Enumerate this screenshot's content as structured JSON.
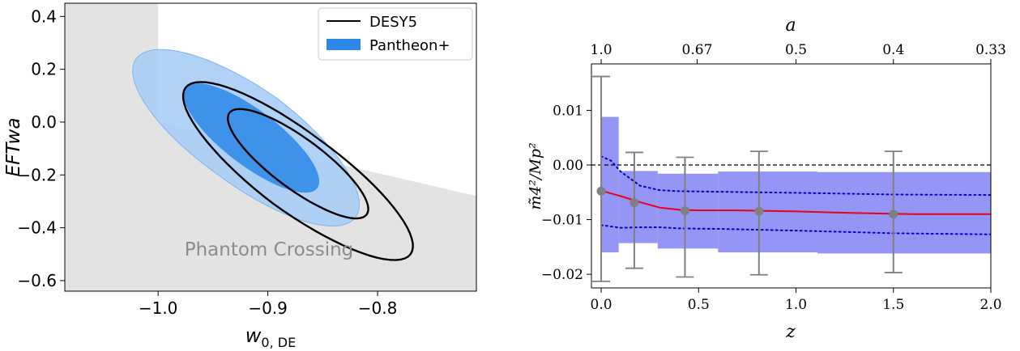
{
  "chart_data": [
    {
      "type": "contour",
      "xlabel": "w_0,DE",
      "xlabel_main": "w",
      "xlabel_sub": "0, DE",
      "ylabel": "EFTwa",
      "xlim": [
        -1.085,
        -0.71
      ],
      "ylim": [
        -0.64,
        0.45
      ],
      "xticks": [
        {
          "v": -1.0,
          "label": "−1.0"
        },
        {
          "v": -0.9,
          "label": "−0.9"
        },
        {
          "v": -0.8,
          "label": "−0.8"
        }
      ],
      "yticks": [
        {
          "v": 0.4,
          "label": "0.4"
        },
        {
          "v": 0.2,
          "label": "0.2"
        },
        {
          "v": 0.0,
          "label": "0.0"
        },
        {
          "v": -0.2,
          "label": "−0.2"
        },
        {
          "v": -0.4,
          "label": "−0.4"
        },
        {
          "v": -0.6,
          "label": "−0.6"
        }
      ],
      "region_label": "Phantom Crossing",
      "legend": {
        "position": "top-right",
        "entries": [
          {
            "name": "DESY5",
            "style": "line",
            "color": "#000000"
          },
          {
            "name": "Pantheon+",
            "style": "patch",
            "color": "#2b87e8"
          }
        ]
      },
      "colors": {
        "region": "#e3e3e3",
        "pantheon_outer": "#a9cdf6",
        "pantheon_inner": "#2b87e8",
        "desy5": "#000000"
      },
      "series": [
        {
          "name": "Pantheon+",
          "kind": "filled",
          "level": "95%",
          "center": [
            -0.92,
            -0.05
          ],
          "tip_a": [
            -1.02,
            0.24
          ],
          "tip_b": [
            -0.82,
            -0.36
          ],
          "half_width": 0.044
        },
        {
          "name": "Pantheon+",
          "kind": "filled",
          "level": "68%",
          "center": [
            -0.915,
            -0.06
          ],
          "tip_a": [
            -0.975,
            0.13
          ],
          "tip_b": [
            -0.855,
            -0.25
          ],
          "half_width": 0.025
        },
        {
          "name": "DESY5",
          "kind": "line",
          "level": "95%",
          "center": [
            -0.87,
            -0.2
          ],
          "tip_a": [
            -0.975,
            0.13
          ],
          "tip_b": [
            -0.77,
            -0.5
          ],
          "half_width": 0.036
        },
        {
          "name": "DESY5",
          "kind": "line",
          "level": "68%",
          "center": [
            -0.875,
            -0.15
          ],
          "tip_a": [
            -0.935,
            0.035
          ],
          "tip_b": [
            -0.81,
            -0.35
          ],
          "half_width": 0.023
        }
      ]
    },
    {
      "type": "line",
      "xlabel": "z",
      "ylabel": "m̃4²/Mp²",
      "top_axis_label": "a",
      "xlim": [
        -0.05,
        2.0
      ],
      "ylim": [
        -0.0225,
        0.0185
      ],
      "xticks": [
        {
          "v": 0.0,
          "label": "0.0"
        },
        {
          "v": 0.5,
          "label": "0.5"
        },
        {
          "v": 1.0,
          "label": "1.0"
        },
        {
          "v": 1.5,
          "label": "1.5"
        },
        {
          "v": 2.0,
          "label": "2.0"
        }
      ],
      "yticks": [
        {
          "v": 0.01,
          "label": "0.01"
        },
        {
          "v": 0.0,
          "label": "0.00"
        },
        {
          "v": -0.01,
          "label": "−0.01"
        },
        {
          "v": -0.02,
          "label": "−0.02"
        }
      ],
      "top_ticks": [
        {
          "z": 0.0,
          "label": "1.0"
        },
        {
          "z": 0.4925,
          "label": "0.67"
        },
        {
          "z": 1.0,
          "label": "0.5"
        },
        {
          "z": 1.5,
          "label": "0.4"
        },
        {
          "z": 2.0,
          "label": "0.33"
        }
      ],
      "reference_line": {
        "y": 0.0,
        "style": "dashed"
      },
      "colors": {
        "band": "#8a8af4",
        "mean": "#e8001e",
        "bounds": "#0000cc",
        "points": "#808080"
      },
      "bins": [
        {
          "z0": 0.0,
          "z1": 0.09,
          "lo": -0.016,
          "hi": 0.0088
        },
        {
          "z0": 0.09,
          "z1": 0.29,
          "lo": -0.0143,
          "hi": -0.0011
        },
        {
          "z0": 0.29,
          "z1": 0.6,
          "lo": -0.0153,
          "hi": -0.0016
        },
        {
          "z0": 0.6,
          "z1": 1.11,
          "lo": -0.016,
          "hi": -0.0012
        },
        {
          "z0": 1.11,
          "z1": 2.0,
          "lo": -0.0162,
          "hi": -0.0013
        }
      ],
      "series": [
        {
          "name": "mean",
          "style": "solid",
          "x": [
            0.0,
            0.1,
            0.2,
            0.3,
            0.4,
            0.5,
            0.7,
            1.0,
            1.3,
            1.6,
            2.0
          ],
          "y": [
            -0.0047,
            -0.0057,
            -0.0068,
            -0.0078,
            -0.0082,
            -0.0083,
            -0.0083,
            -0.0085,
            -0.0088,
            -0.009,
            -0.009
          ]
        },
        {
          "name": "upper",
          "style": "dotted",
          "x": [
            0.0,
            0.05,
            0.1,
            0.2,
            0.3,
            0.4,
            0.6,
            1.0,
            1.5,
            2.0
          ],
          "y": [
            0.0016,
            0.0008,
            -0.0012,
            -0.0038,
            -0.0046,
            -0.0048,
            -0.0049,
            -0.0051,
            -0.0054,
            -0.0055
          ]
        },
        {
          "name": "lower",
          "style": "dotted",
          "x": [
            0.0,
            0.1,
            0.2,
            0.3,
            0.4,
            0.6,
            1.0,
            1.5,
            2.0
          ],
          "y": [
            -0.011,
            -0.0115,
            -0.0114,
            -0.0114,
            -0.0116,
            -0.0117,
            -0.012,
            -0.0125,
            -0.0127
          ]
        },
        {
          "name": "points",
          "style": "errorbar",
          "x": [
            0.0,
            0.17,
            0.43,
            0.81,
            1.5
          ],
          "y": [
            -0.0048,
            -0.0069,
            -0.0084,
            -0.0085,
            -0.009
          ],
          "ylo": [
            -0.0213,
            -0.0189,
            -0.0205,
            -0.0201,
            -0.0197
          ],
          "yhi": [
            0.0162,
            0.0023,
            0.0014,
            0.0025,
            0.0025
          ]
        }
      ]
    }
  ]
}
